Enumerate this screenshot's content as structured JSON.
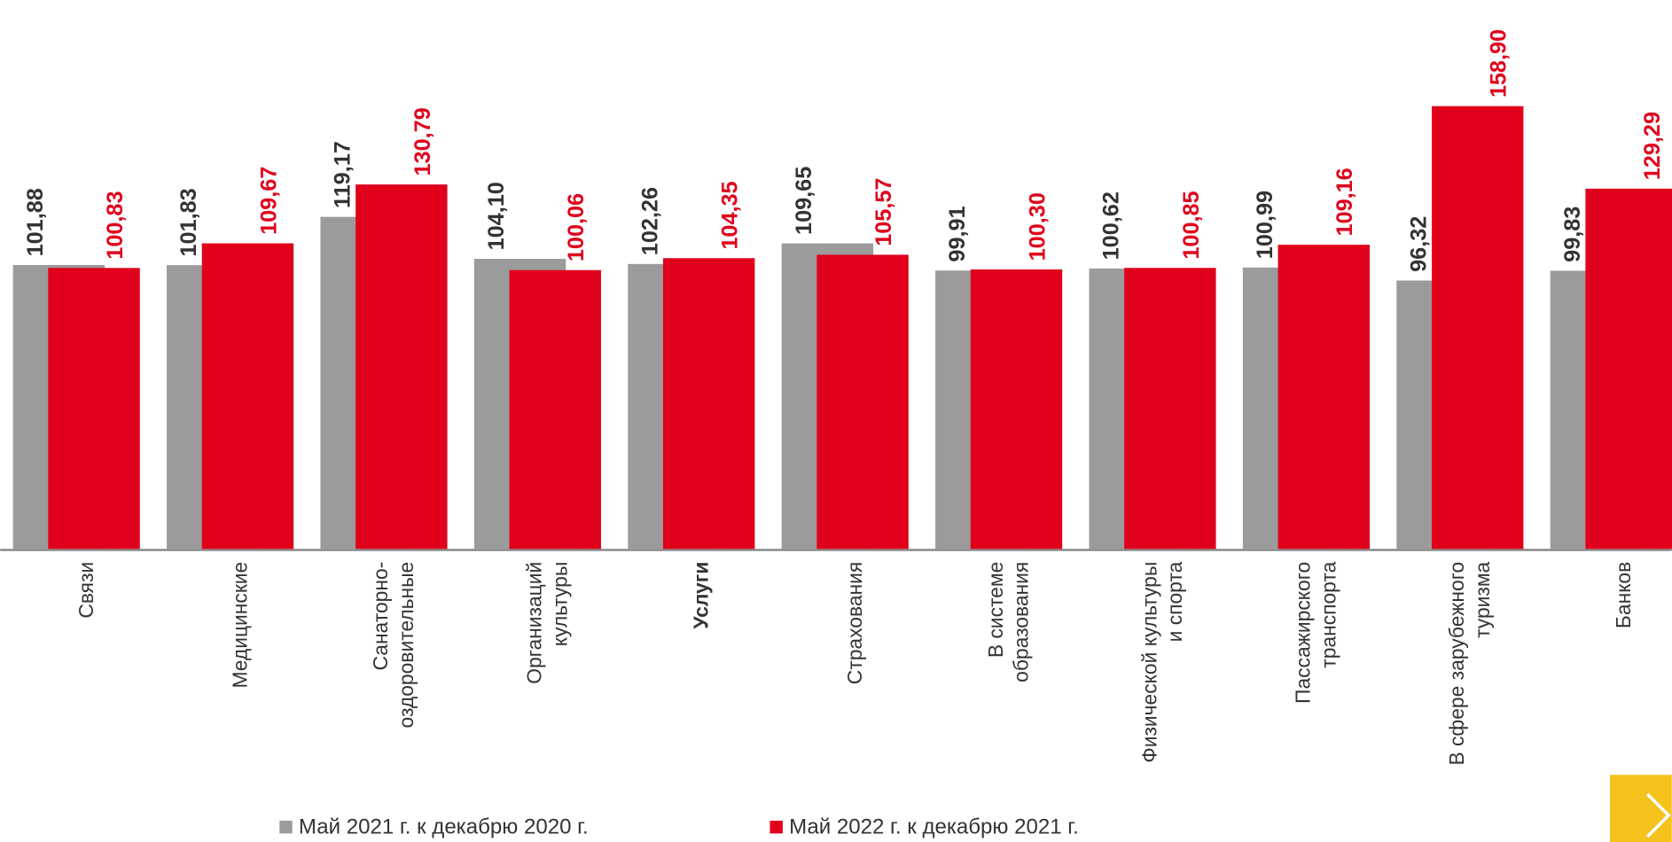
{
  "chart_data": {
    "type": "bar",
    "categories": [
      [
        "Связи"
      ],
      [
        "Медицинские"
      ],
      [
        "Санаторно-",
        "оздоровительные"
      ],
      [
        "Организаций",
        "культуры"
      ],
      [
        "Услуги"
      ],
      [
        "Страхования"
      ],
      [
        "В системе",
        "образования"
      ],
      [
        "Физической культуры",
        "и спорта"
      ],
      [
        "Пассажирского",
        "транспорта"
      ],
      [
        "В сфере зарубежного",
        "туризма"
      ],
      [
        "Банков"
      ]
    ],
    "highlight_index": 4,
    "series": [
      {
        "name": "Май 2021 г. к декабрю 2020 г.",
        "color": "#9b9b9b",
        "values": [
          101.88,
          101.83,
          119.17,
          104.1,
          102.26,
          109.65,
          99.91,
          100.62,
          100.99,
          96.32,
          99.83
        ],
        "value_labels": [
          "101,88",
          "101,83",
          "119,17",
          "104,10",
          "102,26",
          "109,65",
          "99,91",
          "100,62",
          "100,99",
          "96,32",
          "99,83"
        ],
        "label_color": "#333333"
      },
      {
        "name": "Май 2022 г. к декабрю 2021 г.",
        "color": "#e0001b",
        "values": [
          100.83,
          109.67,
          130.79,
          100.06,
          104.35,
          105.57,
          100.3,
          100.85,
          109.16,
          158.9,
          129.29
        ],
        "value_labels": [
          "100,83",
          "109,67",
          "130,79",
          "100,06",
          "104,35",
          "105,57",
          "100,30",
          "100,85",
          "109,16",
          "158,90",
          "129,29"
        ],
        "label_color": "#e0001b"
      }
    ],
    "ylim": [
      0,
      197
    ]
  }
}
